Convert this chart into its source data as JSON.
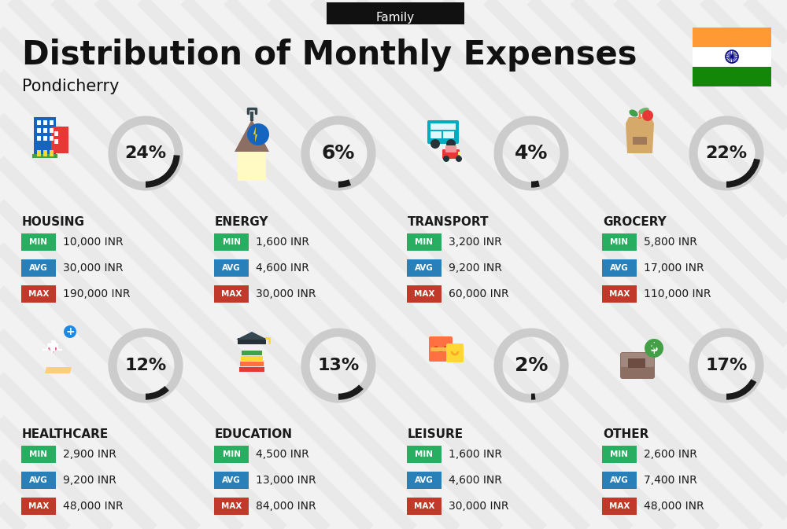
{
  "title": "Distribution of Monthly Expenses",
  "subtitle": "Family",
  "location": "Pondicherry",
  "background_color": "#f2f2f2",
  "categories": [
    {
      "name": "HOUSING",
      "percent": 24,
      "min": "10,000 INR",
      "avg": "30,000 INR",
      "max": "190,000 INR",
      "row": 0,
      "col": 0
    },
    {
      "name": "ENERGY",
      "percent": 6,
      "min": "1,600 INR",
      "avg": "4,600 INR",
      "max": "30,000 INR",
      "row": 0,
      "col": 1
    },
    {
      "name": "TRANSPORT",
      "percent": 4,
      "min": "3,200 INR",
      "avg": "9,200 INR",
      "max": "60,000 INR",
      "row": 0,
      "col": 2
    },
    {
      "name": "GROCERY",
      "percent": 22,
      "min": "5,800 INR",
      "avg": "17,000 INR",
      "max": "110,000 INR",
      "row": 0,
      "col": 3
    },
    {
      "name": "HEALTHCARE",
      "percent": 12,
      "min": "2,900 INR",
      "avg": "9,200 INR",
      "max": "48,000 INR",
      "row": 1,
      "col": 0
    },
    {
      "name": "EDUCATION",
      "percent": 13,
      "min": "4,500 INR",
      "avg": "13,000 INR",
      "max": "84,000 INR",
      "row": 1,
      "col": 1
    },
    {
      "name": "LEISURE",
      "percent": 2,
      "min": "1,600 INR",
      "avg": "4,600 INR",
      "max": "30,000 INR",
      "row": 1,
      "col": 2
    },
    {
      "name": "OTHER",
      "percent": 17,
      "min": "2,600 INR",
      "avg": "7,400 INR",
      "max": "48,000 INR",
      "row": 1,
      "col": 3
    }
  ],
  "min_color": "#27ae60",
  "avg_color": "#2980b9",
  "max_color": "#c0392b",
  "text_color": "#1a1a1a",
  "arc_filled": "#1a1a1a",
  "arc_empty": "#cccccc",
  "flag_orange": "#FF9933",
  "flag_green": "#138808",
  "flag_white": "#ffffff",
  "flag_navy": "#000080"
}
